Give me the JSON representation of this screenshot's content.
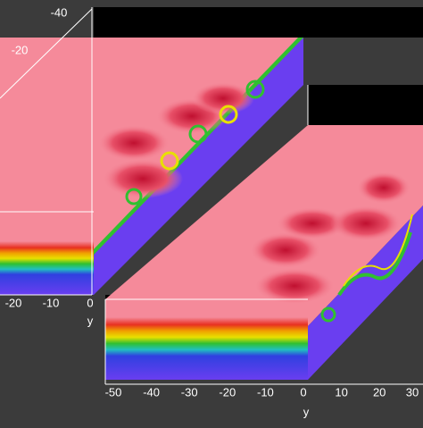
{
  "top_panel": {
    "vertical_ticks": [
      "-40",
      "-20"
    ],
    "bottom_ticks": [
      "-20",
      "-10",
      "0"
    ],
    "axis_label": "y"
  },
  "bottom_panel": {
    "ticks": [
      "-50",
      "-40",
      "-30",
      "-20",
      "-10",
      "0",
      "10",
      "20",
      "30"
    ],
    "axis_label": "y"
  }
}
